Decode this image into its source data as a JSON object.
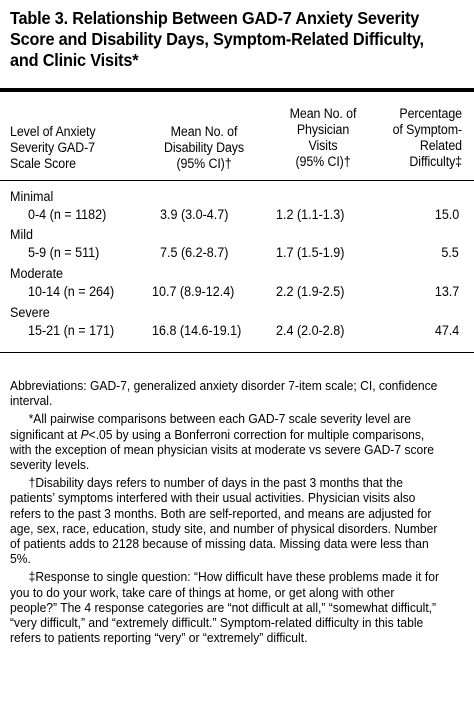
{
  "title": "Table 3. Relationship Between GAD-7 Anxiety Severity Score and Disability Days, Symptom-Related Difficulty, and Clinic Visits*",
  "columns": {
    "level": [
      "Level of Anxiety",
      "Severity GAD-7",
      "Scale Score"
    ],
    "disability": [
      "Mean No. of",
      "Disability Days",
      "(95% CI)†"
    ],
    "physician": [
      "Mean No. of",
      "Physician",
      "Visits",
      "(95% CI)†"
    ],
    "difficulty": [
      "Percentage",
      "of Symptom-",
      "Related",
      "Difficulty‡"
    ]
  },
  "rows": [
    {
      "label": "Minimal",
      "range": "0-4 (n = 1182)",
      "disability": "3.9 (3.0-4.7)",
      "physician": "1.2 (1.1-1.3)",
      "difficulty": "15.0"
    },
    {
      "label": "Mild",
      "range": "5-9 (n = 511)",
      "disability": "7.5 (6.2-8.7)",
      "physician": "1.7 (1.5-1.9)",
      "difficulty": "5.5"
    },
    {
      "label": "Moderate",
      "range": "10-14 (n = 264)",
      "disability": "10.7 (8.9-12.4)",
      "physician": "2.2 (1.9-2.5)",
      "difficulty": "13.7"
    },
    {
      "label": "Severe",
      "range": "15-21 (n = 171)",
      "disability": "16.8 (14.6-19.1)",
      "physician": "2.4 (2.0-2.8)",
      "difficulty": "47.4"
    }
  ],
  "notes": {
    "abbrev": "Abbreviations: GAD-7, generalized anxiety disorder 7-item scale; CI, confidence interval.",
    "star_a": "*All pairwise comparisons between each GAD-7 scale severity level are significant at ",
    "star_p": "P",
    "star_b": "<.05 by using a Bonferroni correction for multiple comparisons, with the exception of mean physician visits at moderate vs severe GAD-7 score severity levels.",
    "dagger": "†Disability days refers to number of days in the past 3 months that the patients’ symptoms interfered with their usual activities. Physician visits also refers to the past 3 months. Both are self-reported, and means are adjusted for age, sex, race, education, study site, and number of physical disorders. Number of patients adds to 2128 because of missing data. Missing data were less than 5%.",
    "ddagger": "‡Response to single question: “How difficult have these problems made it for you to do your work, take care of things at home, or get along with other people?” The 4 response categories are “not difficult at all,” “somewhat difficult,” “very difficult,” and “extremely difficult.” Symptom-related difficulty in this table refers to patients reporting “very” or “extremely” difficult."
  }
}
